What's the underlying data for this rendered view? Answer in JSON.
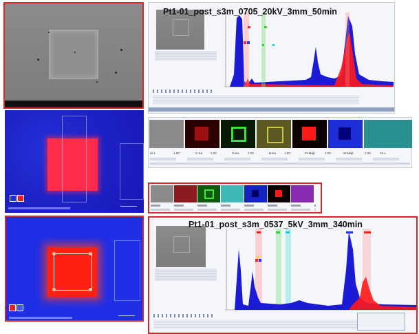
{
  "spectrum1": {
    "title": "Pt1-01_post_s3m_0705_20kV_3mm_50min"
  },
  "spectrum2": {
    "title": "Pt1-01_post_s3m_0537_5kV_3mm_340min"
  },
  "map_strip": {
    "labels": [
      "Si-1",
      "C-Ka",
      "O-Ka",
      "B-Ka",
      "Pt-Maβ",
      "W-Maβ",
      "Fe-L"
    ],
    "values": [
      "1.00",
      "1.00",
      "1.00",
      "1.00",
      "1.00",
      "1.00",
      "1.00"
    ]
  },
  "colors": {
    "frame": "#d9262b",
    "map_blue": "#1f2fe6",
    "map_red": "#ff2a3c",
    "spectrum_blue": "#1b1bd6",
    "spectrum_red": "#ff1a1a"
  },
  "icons": [
    "sem-image",
    "element-map",
    "eds-spectrum",
    "color-legend-swatch"
  ]
}
